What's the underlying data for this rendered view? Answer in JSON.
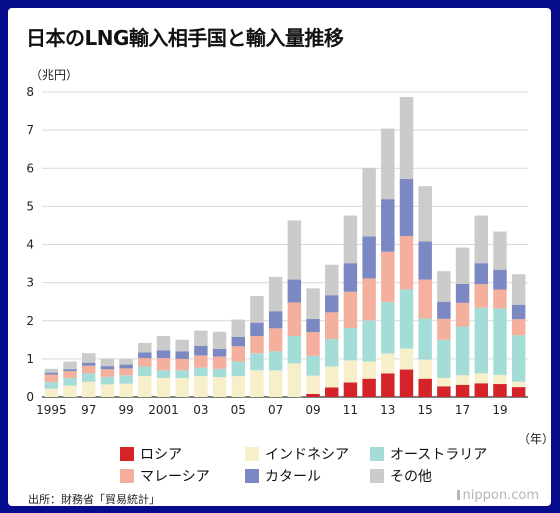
{
  "title": "日本のLNG輸入相手国と輸入量推移",
  "source": "出所：財務省「貿易統計」",
  "logo": "nippon.com",
  "chart_data": {
    "type": "bar",
    "stacked": true,
    "unit_label": "（兆円）",
    "x_unit_label": "（年）",
    "ylim": [
      0,
      8
    ],
    "yticks": [
      0,
      1,
      2,
      3,
      4,
      5,
      6,
      7,
      8
    ],
    "categories": [
      "1995",
      "1996",
      "1997",
      "1998",
      "1999",
      "2000",
      "2001",
      "2002",
      "2003",
      "2004",
      "2005",
      "2006",
      "2007",
      "2008",
      "2009",
      "2010",
      "2011",
      "2012",
      "2013",
      "2014",
      "2015",
      "2016",
      "2017",
      "2018",
      "2019",
      "2020"
    ],
    "tick_labels": [
      "1995",
      "",
      "97",
      "",
      "99",
      "",
      "2001",
      "",
      "03",
      "",
      "05",
      "",
      "07",
      "",
      "09",
      "",
      "11",
      "",
      "13",
      "",
      "15",
      "",
      "17",
      "",
      "19",
      ""
    ],
    "grid": true,
    "legend_position": "bottom",
    "series": [
      {
        "name": "ロシア",
        "color": "#d5232a",
        "values": [
          0,
          0,
          0,
          0,
          0,
          0,
          0,
          0,
          0,
          0,
          0,
          0,
          0,
          0,
          0.08,
          0.25,
          0.38,
          0.48,
          0.62,
          0.72,
          0.48,
          0.28,
          0.32,
          0.36,
          0.34,
          0.26
        ]
      },
      {
        "name": "インドネシア",
        "color": "#f7efc9",
        "values": [
          0.22,
          0.3,
          0.4,
          0.33,
          0.35,
          0.55,
          0.5,
          0.5,
          0.55,
          0.52,
          0.55,
          0.7,
          0.7,
          0.88,
          0.48,
          0.55,
          0.58,
          0.45,
          0.52,
          0.55,
          0.5,
          0.22,
          0.25,
          0.26,
          0.24,
          0.14
        ]
      },
      {
        "name": "オーストラリア",
        "color": "#a4ddd8",
        "values": [
          0.17,
          0.2,
          0.22,
          0.2,
          0.22,
          0.25,
          0.2,
          0.2,
          0.22,
          0.22,
          0.38,
          0.45,
          0.5,
          0.72,
          0.52,
          0.72,
          0.85,
          1.08,
          1.35,
          1.55,
          1.08,
          1.0,
          1.28,
          1.72,
          1.74,
          1.22
        ]
      },
      {
        "name": "マレーシア",
        "color": "#f4b09c",
        "values": [
          0.2,
          0.18,
          0.2,
          0.2,
          0.18,
          0.22,
          0.32,
          0.3,
          0.32,
          0.32,
          0.4,
          0.45,
          0.6,
          0.88,
          0.62,
          0.7,
          0.95,
          1.1,
          1.32,
          1.4,
          1.02,
          0.55,
          0.62,
          0.62,
          0.5,
          0.42
        ]
      },
      {
        "name": "カタール",
        "color": "#7b88c1",
        "values": [
          0.05,
          0.05,
          0.08,
          0.08,
          0.1,
          0.15,
          0.2,
          0.2,
          0.25,
          0.2,
          0.25,
          0.35,
          0.45,
          0.6,
          0.35,
          0.45,
          0.75,
          1.1,
          1.38,
          1.5,
          1.0,
          0.45,
          0.5,
          0.55,
          0.52,
          0.38
        ]
      },
      {
        "name": "その他",
        "color": "#cbcbcb",
        "values": [
          0.1,
          0.2,
          0.25,
          0.2,
          0.15,
          0.25,
          0.38,
          0.3,
          0.4,
          0.45,
          0.45,
          0.7,
          0.9,
          1.55,
          0.8,
          0.8,
          1.25,
          1.8,
          1.85,
          2.15,
          1.45,
          0.8,
          0.95,
          1.25,
          1.0,
          0.8
        ]
      }
    ]
  }
}
